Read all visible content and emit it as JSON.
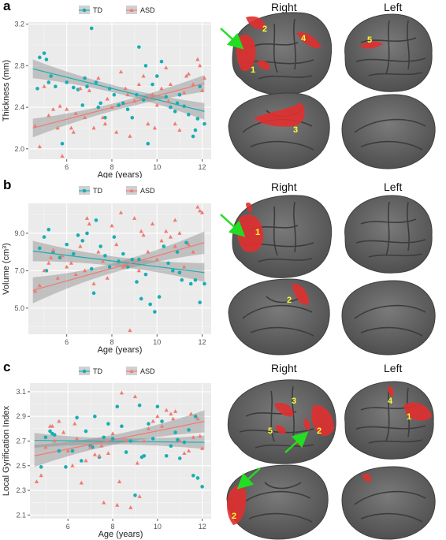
{
  "panels": [
    {
      "letter": "a",
      "hemispheres": {
        "right": "Right",
        "left": "Left"
      }
    },
    {
      "letter": "b",
      "hemispheres": {
        "right": "Right",
        "left": "Left"
      }
    },
    {
      "letter": "c",
      "hemispheres": {
        "right": "Right",
        "left": "Left"
      }
    }
  ],
  "colors": {
    "td": "#17aeb3",
    "asd": "#f07a72",
    "panel_bg": "#ebebeb",
    "grid": "#ffffff",
    "ribbon": "#8c8c8c",
    "brain": "#6b6b6b",
    "region": "#e0302f",
    "marker_label": "#ffff33",
    "arrow": "#22dd22"
  },
  "chart_data": [
    {
      "type": "scatter",
      "xlabel": "Age (years)",
      "ylabel": "Thickness (mm)",
      "xlim": [
        4.3,
        12.4
      ],
      "ylim": [
        1.9,
        3.22
      ],
      "xticks": [
        "6",
        "8",
        "10",
        "12"
      ],
      "xtick_values": [
        6,
        8,
        10,
        12
      ],
      "yticks": [
        "2.0",
        "2.4",
        "2.8",
        "3.2"
      ],
      "ytick_values": [
        2.0,
        2.4,
        2.8,
        3.2
      ],
      "legend": [
        "TD",
        "ASD"
      ],
      "legend_position": "top",
      "series": [
        {
          "name": "TD",
          "marker": "circle",
          "fit": {
            "x": [
              4.5,
              12.1
            ],
            "y": [
              2.77,
              2.36
            ],
            "band": [
              0.09,
              0.035,
              0.08
            ]
          },
          "x": [
            4.7,
            4.8,
            5.0,
            5.1,
            5.3,
            5.5,
            5.8,
            6.0,
            6.3,
            6.5,
            6.7,
            6.9,
            7.1,
            7.3,
            7.5,
            7.7,
            7.9,
            8.1,
            8.3,
            8.5,
            8.7,
            8.9,
            9.1,
            9.2,
            9.4,
            9.6,
            9.8,
            10.0,
            10.2,
            10.4,
            10.6,
            10.8,
            11.0,
            11.2,
            11.4,
            11.6,
            11.8,
            11.9,
            12.1,
            5.2,
            6.8,
            7.4,
            9.5,
            10.9,
            11.7
          ],
          "y": [
            2.58,
            2.88,
            2.92,
            2.86,
            2.7,
            2.6,
            2.05,
            2.64,
            2.59,
            2.57,
            2.42,
            2.6,
            3.16,
            2.64,
            2.44,
            2.3,
            2.58,
            2.52,
            2.42,
            2.44,
            2.38,
            2.3,
            2.52,
            2.98,
            2.47,
            2.05,
            2.62,
            2.7,
            2.84,
            2.5,
            2.4,
            2.36,
            2.52,
            2.41,
            2.33,
            2.12,
            2.29,
            2.6,
            2.24,
            2.64,
            2.68,
            2.4,
            2.8,
            2.44,
            2.18
          ]
        },
        {
          "name": "ASD",
          "marker": "triangle",
          "fit": {
            "x": [
              4.5,
              12.1
            ],
            "y": [
              2.2,
              2.63
            ],
            "band": [
              0.09,
              0.035,
              0.08
            ]
          },
          "x": [
            4.6,
            4.8,
            5.0,
            5.2,
            5.4,
            5.6,
            5.8,
            6.0,
            6.2,
            6.4,
            6.6,
            6.8,
            7.0,
            7.2,
            7.4,
            7.6,
            7.8,
            8.0,
            8.2,
            8.4,
            8.6,
            8.8,
            9.0,
            9.2,
            9.4,
            9.6,
            9.8,
            10.0,
            10.2,
            10.4,
            10.6,
            10.8,
            11.0,
            11.2,
            11.4,
            11.6,
            11.8,
            12.0,
            5.7,
            6.3,
            7.7,
            8.7,
            9.9,
            10.5,
            11.3,
            11.9,
            12.1
          ],
          "y": [
            2.22,
            2.02,
            2.6,
            2.32,
            2.38,
            2.2,
            1.93,
            2.38,
            2.2,
            2.34,
            2.58,
            2.3,
            2.56,
            2.2,
            2.68,
            2.3,
            2.48,
            2.4,
            2.16,
            2.74,
            2.58,
            2.12,
            2.46,
            2.62,
            2.7,
            2.24,
            2.52,
            2.42,
            2.58,
            2.78,
            2.62,
            2.24,
            2.18,
            2.54,
            2.72,
            2.62,
            2.86,
            2.56,
            2.41,
            2.16,
            2.24,
            2.52,
            2.2,
            2.46,
            2.7,
            2.8,
            2.68
          ]
        }
      ]
    },
    {
      "type": "scatter",
      "xlabel": "Age (years)",
      "ylabel": "Volume (cm",
      "ylabel_sup": "3",
      "ylabel_end": ")",
      "xlim": [
        4.3,
        12.4
      ],
      "ylim": [
        3.6,
        10.6
      ],
      "xticks": [
        "6",
        "8",
        "10",
        "12"
      ],
      "xtick_values": [
        6,
        8,
        10,
        12
      ],
      "yticks": [
        "5.0",
        "7.0",
        "9.0"
      ],
      "ytick_values": [
        5.0,
        7.0,
        9.0
      ],
      "legend": [
        "TD",
        "ASD"
      ],
      "legend_position": "top",
      "series": [
        {
          "name": "TD",
          "marker": "circle",
          "fit": {
            "x": [
              4.5,
              12.1
            ],
            "y": [
              8.05,
              6.9
            ],
            "band": [
              0.55,
              0.25,
              0.5
            ]
          },
          "x": [
            4.8,
            5.0,
            5.2,
            5.4,
            5.7,
            6.0,
            6.3,
            6.5,
            6.7,
            6.9,
            7.1,
            7.3,
            7.5,
            7.7,
            7.9,
            8.1,
            8.3,
            8.5,
            8.7,
            8.9,
            9.1,
            9.3,
            9.5,
            9.7,
            9.9,
            10.1,
            10.3,
            10.5,
            10.7,
            10.9,
            11.1,
            11.3,
            11.5,
            11.7,
            11.9,
            12.1,
            5.1,
            7.2,
            9.2,
            11.0
          ],
          "y": [
            8.2,
            8.8,
            9.2,
            8.0,
            7.7,
            8.4,
            7.9,
            8.9,
            8.6,
            9.0,
            7.1,
            9.7,
            8.3,
            7.8,
            7.2,
            8.8,
            7.5,
            7.9,
            7.2,
            7.6,
            6.4,
            5.5,
            6.8,
            5.2,
            4.8,
            5.6,
            8.3,
            7.4,
            7.0,
            8.0,
            6.5,
            8.5,
            6.3,
            6.5,
            5.3,
            6.3,
            7.0,
            5.8,
            7.6,
            6.9
          ]
        },
        {
          "name": "ASD",
          "marker": "triangle",
          "fit": {
            "x": [
              4.5,
              12.1
            ],
            "y": [
              5.95,
              8.5
            ],
            "band": [
              0.7,
              0.25,
              0.6
            ]
          },
          "x": [
            4.6,
            4.8,
            5.0,
            5.2,
            5.4,
            5.6,
            5.8,
            6.0,
            6.2,
            6.4,
            6.6,
            6.8,
            7.0,
            7.2,
            7.4,
            7.6,
            7.8,
            8.0,
            8.2,
            8.4,
            8.6,
            8.8,
            9.0,
            9.2,
            9.4,
            9.6,
            9.8,
            10.0,
            10.2,
            10.4,
            10.6,
            10.8,
            11.0,
            11.2,
            11.4,
            11.6,
            11.8,
            12.0,
            5.3,
            6.9,
            8.5,
            9.3,
            10.8,
            11.9
          ],
          "y": [
            5.9,
            6.2,
            7.0,
            7.4,
            8.1,
            6.6,
            7.8,
            7.2,
            7.4,
            6.8,
            8.3,
            7.0,
            9.5,
            6.3,
            8.0,
            7.5,
            6.6,
            9.4,
            8.4,
            10.1,
            7.3,
            3.8,
            9.8,
            7.0,
            8.9,
            8.0,
            9.5,
            7.6,
            8.6,
            9.1,
            8.8,
            8.3,
            9.0,
            7.2,
            8.4,
            8.0,
            10.4,
            10.1,
            7.7,
            9.8,
            7.2,
            9.1,
            9.7,
            10.2
          ]
        }
      ]
    },
    {
      "type": "scatter",
      "xlabel": "Age (years)",
      "ylabel": "Local Gyrification Index",
      "xlim": [
        4.3,
        12.4
      ],
      "ylim": [
        2.07,
        3.17
      ],
      "xticks": [
        "6",
        "8",
        "10",
        "12"
      ],
      "xtick_values": [
        6,
        8,
        10,
        12
      ],
      "yticks": [
        "2.1",
        "2.3",
        "2.5",
        "2.7",
        "2.9",
        "3.1"
      ],
      "ytick_values": [
        2.1,
        2.3,
        2.5,
        2.7,
        2.9,
        3.1
      ],
      "legend": [
        "TD",
        "ASD"
      ],
      "legend_position": "top",
      "series": [
        {
          "name": "TD",
          "marker": "circle",
          "fit": {
            "x": [
              4.5,
              12.1
            ],
            "y": [
              2.705,
              2.69
            ],
            "band": [
              0.06,
              0.025,
              0.055
            ]
          },
          "x": [
            4.8,
            5.0,
            5.2,
            5.4,
            5.6,
            5.9,
            6.2,
            6.4,
            6.6,
            6.8,
            7.0,
            7.2,
            7.4,
            7.6,
            7.8,
            8.0,
            8.2,
            8.4,
            8.6,
            8.8,
            9.0,
            9.2,
            9.4,
            9.6,
            9.8,
            10.0,
            10.2,
            10.4,
            10.6,
            10.8,
            11.0,
            11.2,
            11.4,
            11.6,
            11.8,
            12.0,
            5.3,
            7.1,
            9.3,
            10.9,
            11.7
          ],
          "y": [
            2.49,
            2.73,
            2.78,
            2.75,
            2.62,
            2.49,
            2.62,
            2.89,
            2.54,
            2.78,
            2.66,
            2.9,
            2.57,
            2.73,
            2.84,
            2.72,
            2.98,
            2.82,
            2.61,
            2.7,
            2.26,
            2.99,
            2.58,
            2.84,
            2.72,
            2.98,
            2.86,
            2.58,
            2.66,
            2.77,
            2.56,
            2.69,
            2.79,
            2.42,
            2.4,
            2.33,
            2.76,
            2.65,
            2.57,
            2.71,
            2.9
          ]
        },
        {
          "name": "ASD",
          "marker": "triangle",
          "fit": {
            "x": [
              4.5,
              12.1
            ],
            "y": [
              2.58,
              2.86
            ],
            "band": [
              0.09,
              0.04,
              0.09
            ]
          },
          "x": [
            4.6,
            4.8,
            5.0,
            5.2,
            5.4,
            5.6,
            5.8,
            6.0,
            6.2,
            6.4,
            6.6,
            6.8,
            7.0,
            7.2,
            7.4,
            7.6,
            7.8,
            8.0,
            8.2,
            8.4,
            8.6,
            8.8,
            9.0,
            9.2,
            9.4,
            9.6,
            9.8,
            10.0,
            10.2,
            10.4,
            10.6,
            10.8,
            11.0,
            11.2,
            11.4,
            11.6,
            11.8,
            12.0,
            5.3,
            6.3,
            7.5,
            8.3,
            9.1,
            10.7,
            11.5,
            11.9
          ],
          "y": [
            2.37,
            2.42,
            2.65,
            2.82,
            2.7,
            2.86,
            2.77,
            2.62,
            2.5,
            2.72,
            2.36,
            2.54,
            2.65,
            2.59,
            2.58,
            2.2,
            2.6,
            2.76,
            2.18,
            3.09,
            2.7,
            2.16,
            3.06,
            2.25,
            2.7,
            2.8,
            2.86,
            2.9,
            2.82,
            2.95,
            2.92,
            2.94,
            2.7,
            2.6,
            2.62,
            2.73,
            2.88,
            2.64,
            2.82,
            2.84,
            2.66,
            2.37,
            2.52,
            2.88,
            2.92,
            2.74
          ]
        }
      ]
    }
  ],
  "brain_markers": {
    "a": {
      "right_lateral": [
        "1",
        "2",
        "4"
      ],
      "left_lateral": [
        "5"
      ],
      "right_medial": [
        "3"
      ]
    },
    "b": {
      "right_lateral": [
        "1"
      ],
      "right_medial": [
        "2"
      ]
    },
    "c": {
      "right_lateral": [
        "2",
        "3",
        "5"
      ],
      "left_lateral": [
        "1",
        "4"
      ],
      "right_medial": [
        "2"
      ]
    }
  }
}
